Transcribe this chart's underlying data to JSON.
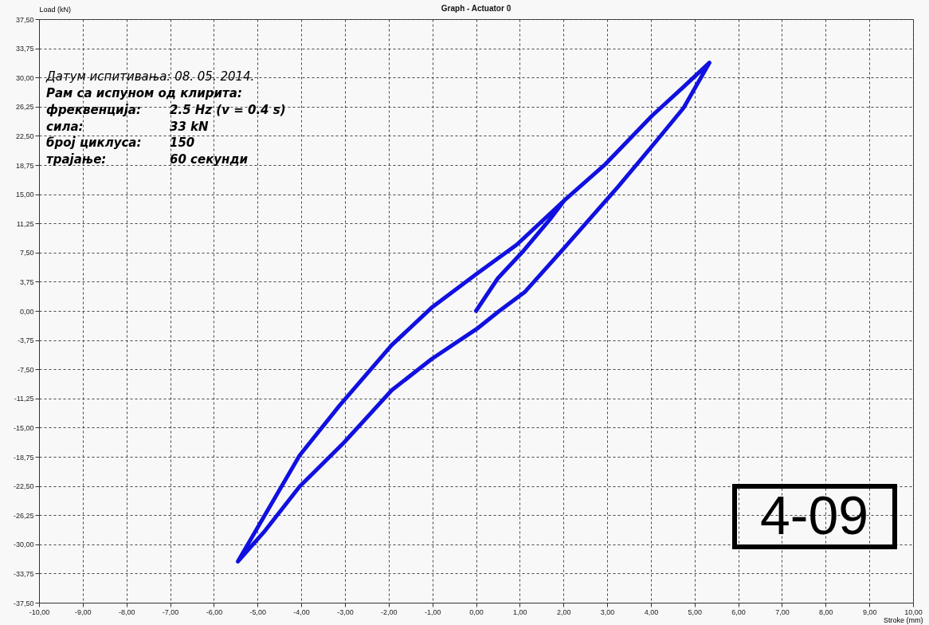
{
  "chart_data": {
    "type": "line",
    "title": "Graph - Actuator 0",
    "xlabel": "Stroke (mm)",
    "ylabel": "Load (kN)",
    "xlim": [
      -10,
      10
    ],
    "ylim": [
      -37.5,
      37.5
    ],
    "xticks": [
      {
        "value": -10,
        "label": "-10,00"
      },
      {
        "value": -9,
        "label": "-9,00"
      },
      {
        "value": -8,
        "label": "-8,00"
      },
      {
        "value": -7,
        "label": "-7,00"
      },
      {
        "value": -6,
        "label": "-6,00"
      },
      {
        "value": -5,
        "label": "-5,00"
      },
      {
        "value": -4,
        "label": "-4,00"
      },
      {
        "value": -3,
        "label": "-3,00"
      },
      {
        "value": -2,
        "label": "-2,00"
      },
      {
        "value": -1,
        "label": "-1,00"
      },
      {
        "value": 0,
        "label": "0,00"
      },
      {
        "value": 1,
        "label": "1,00"
      },
      {
        "value": 2,
        "label": "2,00"
      },
      {
        "value": 3,
        "label": "3,00"
      },
      {
        "value": 4,
        "label": "4,00"
      },
      {
        "value": 5,
        "label": "5,00"
      },
      {
        "value": 6,
        "label": "6,00"
      },
      {
        "value": 7,
        "label": "7,00"
      },
      {
        "value": 8,
        "label": "8,00"
      },
      {
        "value": 9,
        "label": "9,00"
      },
      {
        "value": 10,
        "label": "10,00"
      }
    ],
    "yticks": [
      {
        "value": -37.5,
        "label": "-37,50"
      },
      {
        "value": -33.75,
        "label": "-33,75"
      },
      {
        "value": -30,
        "label": "-30,00"
      },
      {
        "value": -26.25,
        "label": "-26,25"
      },
      {
        "value": -22.5,
        "label": "-22,50"
      },
      {
        "value": -18.75,
        "label": "-18,75"
      },
      {
        "value": -15,
        "label": "-15,00"
      },
      {
        "value": -11.25,
        "label": "-11,25"
      },
      {
        "value": -7.5,
        "label": "-7,50"
      },
      {
        "value": -3.75,
        "label": "-3,75"
      },
      {
        "value": 0,
        "label": "0,00"
      },
      {
        "value": 3.75,
        "label": "3,75"
      },
      {
        "value": 7.5,
        "label": "7,50"
      },
      {
        "value": 11.25,
        "label": "11,25"
      },
      {
        "value": 15,
        "label": "15,00"
      },
      {
        "value": 18.75,
        "label": "18,75"
      },
      {
        "value": 22.5,
        "label": "22,50"
      },
      {
        "value": 26.25,
        "label": "26,25"
      },
      {
        "value": 30,
        "label": "30,00"
      },
      {
        "value": 33.75,
        "label": "33,75"
      },
      {
        "value": 37.5,
        "label": "37,50"
      }
    ],
    "grid": true,
    "marker": "none",
    "line_style": "solid",
    "series": [
      {
        "color": "#1010e0",
        "x": [
          0,
          0.5,
          1.05,
          1.71,
          2.02,
          2.93,
          4.03,
          4.75,
          5.34,
          4.75,
          4.15,
          3.24,
          2.02,
          1.11,
          0.51,
          0.02,
          -1.02,
          -1.93,
          -3.02,
          -4.04,
          -4.85,
          -5.45,
          -4.04,
          -3.13,
          -1.93,
          -1.02,
          0.02,
          0.93,
          2.02,
          2.93,
          4.03,
          4.75,
          5.34
        ],
        "values": [
          0,
          4.2,
          7.5,
          11.9,
          14.2,
          18.7,
          25.1,
          28.8,
          31.9,
          26.1,
          22.0,
          15.9,
          8.1,
          2.4,
          -0.1,
          -2.3,
          -6.2,
          -10.2,
          -16.9,
          -22.6,
          -28.4,
          -32.2,
          -18.6,
          -12.2,
          -4.4,
          0.4,
          4.8,
          8.5,
          14.2,
          18.7,
          25.1,
          28.8,
          31.9
        ]
      }
    ],
    "annotations": [
      "Датум испитивања: 08. 05. 2014.",
      "Рам са испуном од клирита:",
      "фреквенција:",
      "2.5 Hz (v = 0.4 s)",
      "сила:",
      "33 kN",
      "број циклуса:",
      "150",
      "трајање:",
      "60 секунди",
      "4-09"
    ]
  }
}
